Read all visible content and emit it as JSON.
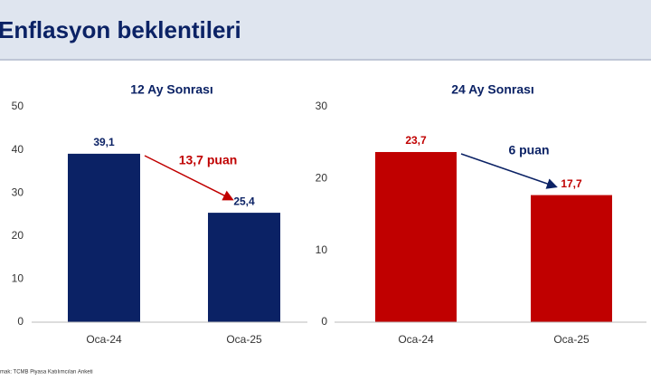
{
  "header": {
    "title": "Enflasyon beklentileri"
  },
  "source": "mak: TCMB Piyasa Katılımcıları Anketi",
  "chart_data": [
    {
      "type": "bar",
      "title": "12 Ay Sonrası",
      "categories": [
        "Oca-24",
        "Oca-25"
      ],
      "values": [
        39.1,
        25.4
      ],
      "value_labels": [
        "39,1",
        "25,4"
      ],
      "color": "#0b2265",
      "ylim": [
        0,
        50
      ],
      "yticks": [
        0,
        10,
        20,
        30,
        40,
        50
      ],
      "grid": false,
      "annotation": "13,7 puan",
      "annotation_color": "#c00000"
    },
    {
      "type": "bar",
      "title": "24 Ay Sonrası",
      "categories": [
        "Oca-24",
        "Oca-25"
      ],
      "values": [
        23.7,
        17.7
      ],
      "value_labels": [
        "23,7",
        "17,7"
      ],
      "color": "#c00000",
      "ylim": [
        0,
        30
      ],
      "yticks": [
        0,
        10,
        20,
        30
      ],
      "grid": false,
      "annotation": "6 puan",
      "annotation_color": "#0b2265"
    }
  ]
}
